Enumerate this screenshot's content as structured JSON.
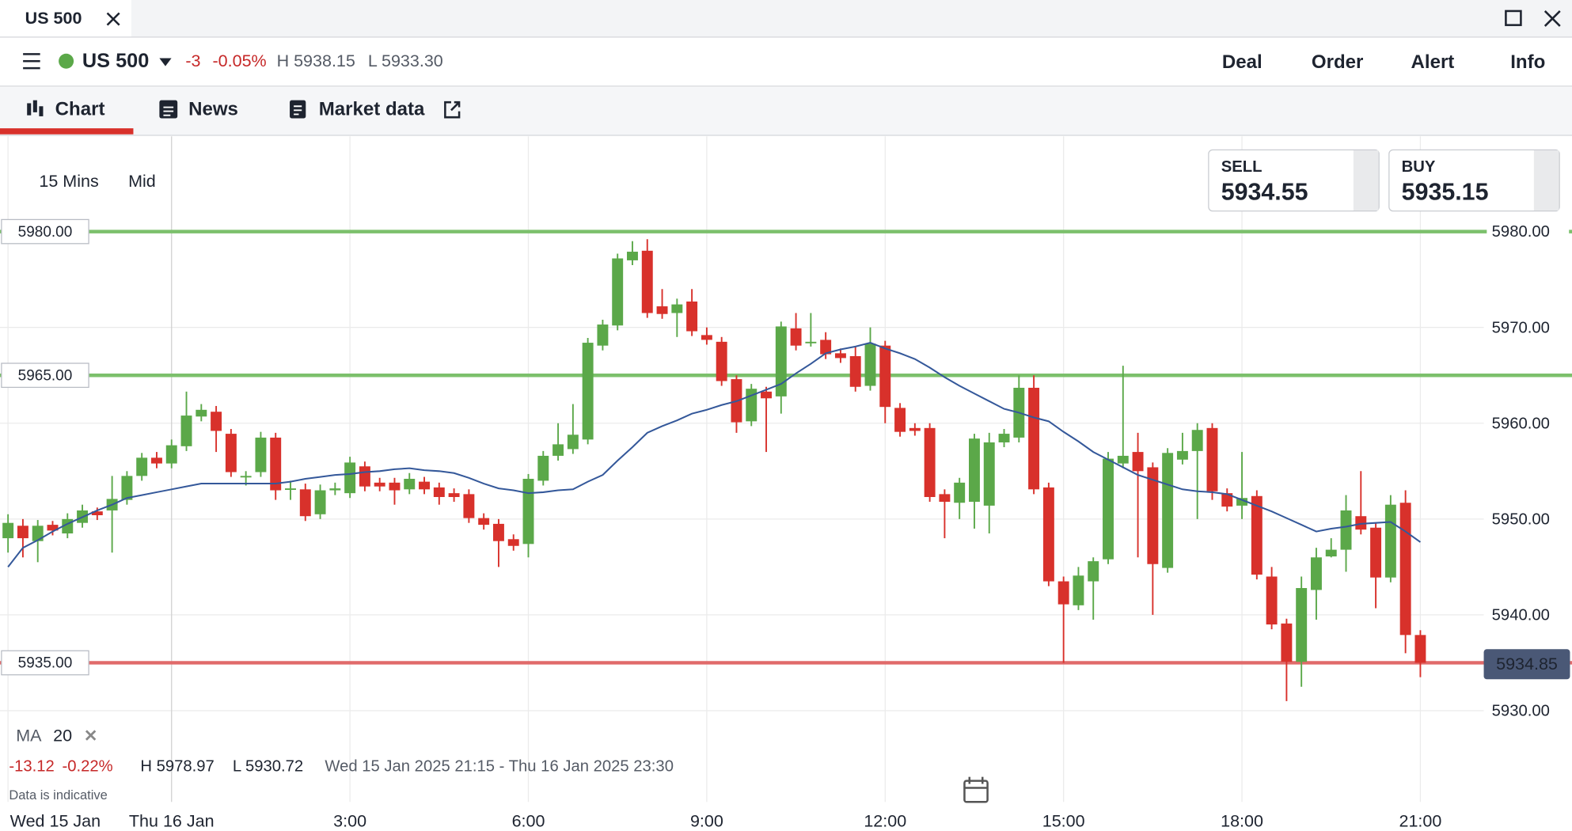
{
  "window": {
    "tab": "US 500"
  },
  "header": {
    "instrument": "US 500",
    "change": "-3",
    "change_pct": "-0.05%",
    "high": "H 5938.15",
    "low": "L 5933.30",
    "actions": [
      "Deal",
      "Order",
      "Alert",
      "Info"
    ]
  },
  "tabs": [
    "Chart",
    "News",
    "Market data"
  ],
  "controls": {
    "interval": "15 Mins",
    "price_type": "Mid"
  },
  "quotes": {
    "sell_label": "SELL",
    "sell": "5934.55",
    "buy_label": "BUY",
    "buy": "5935.15"
  },
  "summary": {
    "change": "-13.12",
    "change_pct": "-0.22%",
    "high": "H 5978.97",
    "low": "L 5930.72",
    "range": "Wed 15 Jan 2025 21:15 - Thu 16 Jan 2025 23:30",
    "note": "Data is indicative"
  },
  "chart_data": {
    "type": "candlestick",
    "up_color": "#5ba849",
    "down_color": "#d8312b",
    "grid": true,
    "xlim": [
      -0.54,
      105.2
    ],
    "xticks": [
      {
        "value": 0,
        "label": "Wed 15 Jan"
      },
      {
        "value": 11,
        "label": "Thu 16 Jan"
      },
      {
        "value": 23,
        "label": "3:00"
      },
      {
        "value": 35,
        "label": "6:00"
      },
      {
        "value": 47,
        "label": "9:00"
      },
      {
        "value": 59,
        "label": "12:00"
      },
      {
        "value": 71,
        "label": "15:00"
      },
      {
        "value": 83,
        "label": "18:00"
      },
      {
        "value": 95,
        "label": "21:00"
      }
    ],
    "ylim": [
      5920.48,
      5989.94
    ],
    "yticks": [
      {
        "value": 5930,
        "label": "5930.00"
      },
      {
        "value": 5940,
        "label": "5940.00"
      },
      {
        "value": 5950,
        "label": "5950.00"
      },
      {
        "value": 5960,
        "label": "5960.00"
      },
      {
        "value": 5970,
        "label": "5970.00"
      },
      {
        "value": 5980,
        "label": "5980.00"
      }
    ],
    "open": [
      5948.0,
      5949.3,
      5947.7,
      5949.4,
      5948.5,
      5949.6,
      5950.8,
      5950.9,
      5952.0,
      5954.5,
      5956.4,
      5955.8,
      5957.6,
      5960.7,
      5961.2,
      5958.9,
      5954.5,
      5954.9,
      5958.5,
      5953.2,
      5953.1,
      5950.5,
      5953.0,
      5952.7,
      5955.5,
      5953.8,
      5953.8,
      5953.1,
      5953.9,
      5953.3,
      5952.7,
      5952.6,
      5950.1,
      5949.5,
      5947.9,
      5947.4,
      5954.0,
      5956.6,
      5957.3,
      5958.3,
      5968.1,
      5970.2,
      5977.0,
      5978.0,
      5972.2,
      5971.5,
      5972.7,
      5969.2,
      5968.5,
      5964.6,
      5960.2,
      5963.3,
      5962.8,
      5969.9,
      5968.5,
      5968.7,
      5967.3,
      5967.0,
      5963.9,
      5968.1,
      5961.6,
      5959.5,
      5959.5,
      5952.6,
      5951.7,
      5951.8,
      5951.4,
      5958.0,
      5958.5,
      5963.7,
      5953.3,
      5943.5,
      5941.0,
      5943.5,
      5945.8,
      5955.8,
      5957.0,
      5955.4,
      5944.9,
      5956.2,
      5957.1,
      5959.5,
      5952.7,
      5951.4,
      5952.4,
      5944.0,
      5939.1,
      5935.1,
      5942.6,
      5946.1,
      5946.8,
      5950.3,
      5949.1,
      5943.9,
      5951.7,
      5937.9
    ],
    "high": [
      5950.5,
      5950.0,
      5949.9,
      5949.8,
      5950.6,
      5951.5,
      5951.2,
      5954.5,
      5955.0,
      5956.9,
      5957.0,
      5958.3,
      5963.3,
      5962.0,
      5961.8,
      5959.4,
      5955.0,
      5959.1,
      5959.0,
      5954.0,
      5953.7,
      5953.6,
      5953.8,
      5956.5,
      5956.0,
      5954.3,
      5954.3,
      5954.8,
      5954.4,
      5953.8,
      5953.2,
      5953.1,
      5950.6,
      5950.0,
      5948.4,
      5954.7,
      5957.1,
      5960.0,
      5962.0,
      5968.9,
      5970.8,
      5977.7,
      5979.0,
      5979.2,
      5974.0,
      5973.0,
      5974.0,
      5970.0,
      5969.0,
      5965.0,
      5964.1,
      5963.8,
      5970.6,
      5971.5,
      5971.5,
      5969.5,
      5967.8,
      5968.0,
      5970.0,
      5968.6,
      5962.1,
      5960.0,
      5960.0,
      5953.1,
      5954.3,
      5958.9,
      5959.0,
      5959.4,
      5965.0,
      5965.0,
      5953.8,
      5944.0,
      5945.0,
      5946.0,
      5957.0,
      5966.0,
      5959.0,
      5955.9,
      5957.4,
      5959.0,
      5960.0,
      5960.0,
      5953.2,
      5957.0,
      5953.0,
      5945.0,
      5939.6,
      5944.0,
      5947.0,
      5948.0,
      5952.5,
      5955.0,
      5949.6,
      5952.5,
      5953.0,
      5938.4
    ],
    "low": [
      5946.5,
      5946.0,
      5945.5,
      5948.3,
      5948.0,
      5949.1,
      5949.9,
      5946.5,
      5951.5,
      5954.0,
      5955.3,
      5955.3,
      5957.1,
      5960.2,
      5957.0,
      5954.4,
      5953.5,
      5954.4,
      5952.0,
      5952.0,
      5949.8,
      5950.0,
      5952.5,
      5952.2,
      5952.9,
      5952.9,
      5951.5,
      5952.6,
      5952.6,
      5951.5,
      5951.8,
      5949.6,
      5948.9,
      5945.0,
      5946.7,
      5946.0,
      5953.5,
      5956.1,
      5956.8,
      5957.8,
      5967.6,
      5969.7,
      5976.5,
      5971.0,
      5970.9,
      5969.0,
      5969.1,
      5968.2,
      5963.9,
      5959.0,
      5959.7,
      5957.0,
      5961.0,
      5967.6,
      5968.0,
      5966.7,
      5966.3,
      5963.3,
      5963.4,
      5960.0,
      5958.6,
      5958.7,
      5951.8,
      5948.0,
      5950.0,
      5949.0,
      5948.5,
      5957.5,
      5958.0,
      5952.6,
      5943.0,
      5935.0,
      5940.5,
      5939.5,
      5945.3,
      5955.3,
      5946.0,
      5940.0,
      5944.4,
      5955.7,
      5950.0,
      5952.0,
      5950.8,
      5950.0,
      5943.7,
      5938.5,
      5931.0,
      5932.5,
      5939.5,
      5946.0,
      5944.5,
      5948.4,
      5940.7,
      5943.4,
      5936.0,
      5933.5
    ],
    "close": [
      5949.6,
      5948.0,
      5949.3,
      5948.8,
      5950.0,
      5950.9,
      5950.4,
      5952.1,
      5954.5,
      5956.4,
      5955.8,
      5957.7,
      5960.8,
      5961.4,
      5959.2,
      5954.9,
      5954.5,
      5958.5,
      5953.0,
      5953.2,
      5950.3,
      5953.0,
      5953.2,
      5955.9,
      5953.4,
      5953.4,
      5953.0,
      5954.2,
      5953.1,
      5952.3,
      5952.3,
      5950.1,
      5949.4,
      5947.7,
      5947.2,
      5954.2,
      5956.6,
      5957.8,
      5958.8,
      5968.4,
      5970.3,
      5977.2,
      5977.9,
      5971.5,
      5971.4,
      5972.4,
      5969.6,
      5968.7,
      5964.4,
      5960.1,
      5963.6,
      5962.6,
      5970.1,
      5968.1,
      5968.5,
      5967.2,
      5966.8,
      5963.8,
      5968.3,
      5961.7,
      5959.1,
      5959.2,
      5952.3,
      5951.8,
      5953.8,
      5958.4,
      5958.0,
      5958.9,
      5963.7,
      5953.1,
      5943.5,
      5941.1,
      5944.1,
      5945.6,
      5956.3,
      5956.6,
      5955.0,
      5945.3,
      5956.9,
      5957.1,
      5959.3,
      5952.9,
      5951.3,
      5952.2,
      5944.2,
      5939.0,
      5935.1,
      5942.8,
      5946.0,
      5946.8,
      5950.9,
      5948.9,
      5943.9,
      5951.5,
      5937.9,
      5935.0
    ],
    "indicator": {
      "name": "MA",
      "period": 20,
      "color": "#34589a",
      "values": [
        5945.0,
        5947.0,
        5947.8,
        5948.7,
        5949.5,
        5950.2,
        5950.9,
        5951.5,
        5952.2,
        5952.5,
        5952.8,
        5953.1,
        5953.4,
        5953.7,
        5953.7,
        5953.7,
        5953.7,
        5953.7,
        5953.7,
        5953.9,
        5954.2,
        5954.4,
        5954.6,
        5954.7,
        5954.9,
        5955.0,
        5955.2,
        5955.3,
        5955.1,
        5955.0,
        5954.8,
        5954.3,
        5953.7,
        5953.2,
        5953.0,
        5952.7,
        5952.8,
        5953.0,
        5953.1,
        5953.9,
        5954.6,
        5956.1,
        5957.5,
        5959.0,
        5959.7,
        5960.3,
        5961.0,
        5961.4,
        5961.9,
        5962.3,
        5962.9,
        5963.5,
        5964.1,
        5965.2,
        5966.2,
        5967.3,
        5967.7,
        5968.0,
        5968.4,
        5967.8,
        5967.3,
        5966.7,
        5965.8,
        5964.8,
        5963.9,
        5963.1,
        5962.3,
        5961.5,
        5961.1,
        5960.6,
        5960.2,
        5959.1,
        5958.1,
        5957.0,
        5956.2,
        5955.4,
        5954.6,
        5954.1,
        5953.6,
        5953.1,
        5952.9,
        5952.8,
        5952.6,
        5952.0,
        5951.4,
        5950.8,
        5950.1,
        5949.4,
        5948.7,
        5949.0,
        5949.2,
        5949.5,
        5949.6,
        5949.7,
        5948.7,
        5947.6
      ]
    },
    "levels": [
      {
        "value": 5980,
        "label": "5980.00",
        "color": "#7cc06c"
      },
      {
        "value": 5965,
        "label": "5965.00",
        "color": "#7cc06c"
      },
      {
        "value": 5935,
        "label": "5935.00",
        "color": "#e06a6a"
      }
    ],
    "last_price": {
      "value": 5934.85,
      "label": "5934.85",
      "color": "#4a5876"
    }
  }
}
